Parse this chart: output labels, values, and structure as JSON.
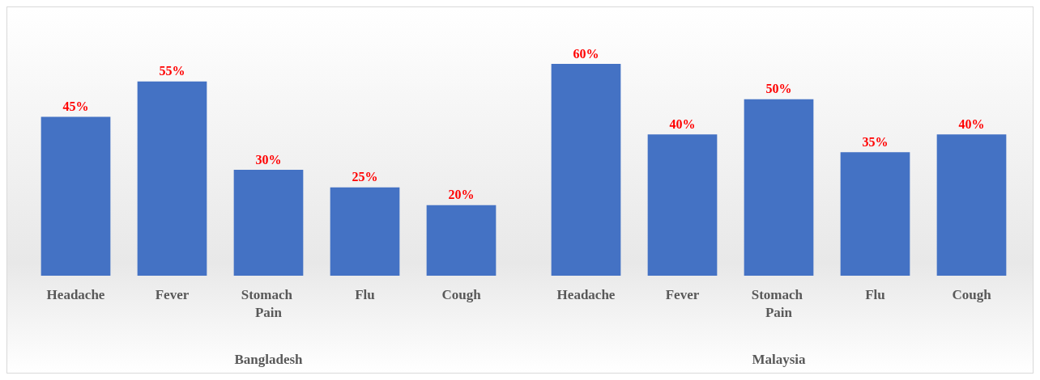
{
  "chart_data": [
    {
      "type": "bar",
      "xlabel": "Bangladesh",
      "categories": [
        "Headache",
        "Fever",
        "Stomach Pain",
        "Flu",
        "Cough"
      ],
      "values": [
        45,
        55,
        30,
        25,
        20
      ],
      "value_labels": [
        "45%",
        "55%",
        "30%",
        "25%",
        "20%"
      ],
      "color": "#4472c4"
    },
    {
      "type": "bar",
      "xlabel": "Malaysia",
      "categories": [
        "Headache",
        "Fever",
        "Stomach Pain",
        "Flu",
        "Cough"
      ],
      "values": [
        60,
        40,
        50,
        35,
        40
      ],
      "value_labels": [
        "60%",
        "40%",
        "50%",
        "35%",
        "40%"
      ],
      "color": "#4472c4"
    }
  ]
}
